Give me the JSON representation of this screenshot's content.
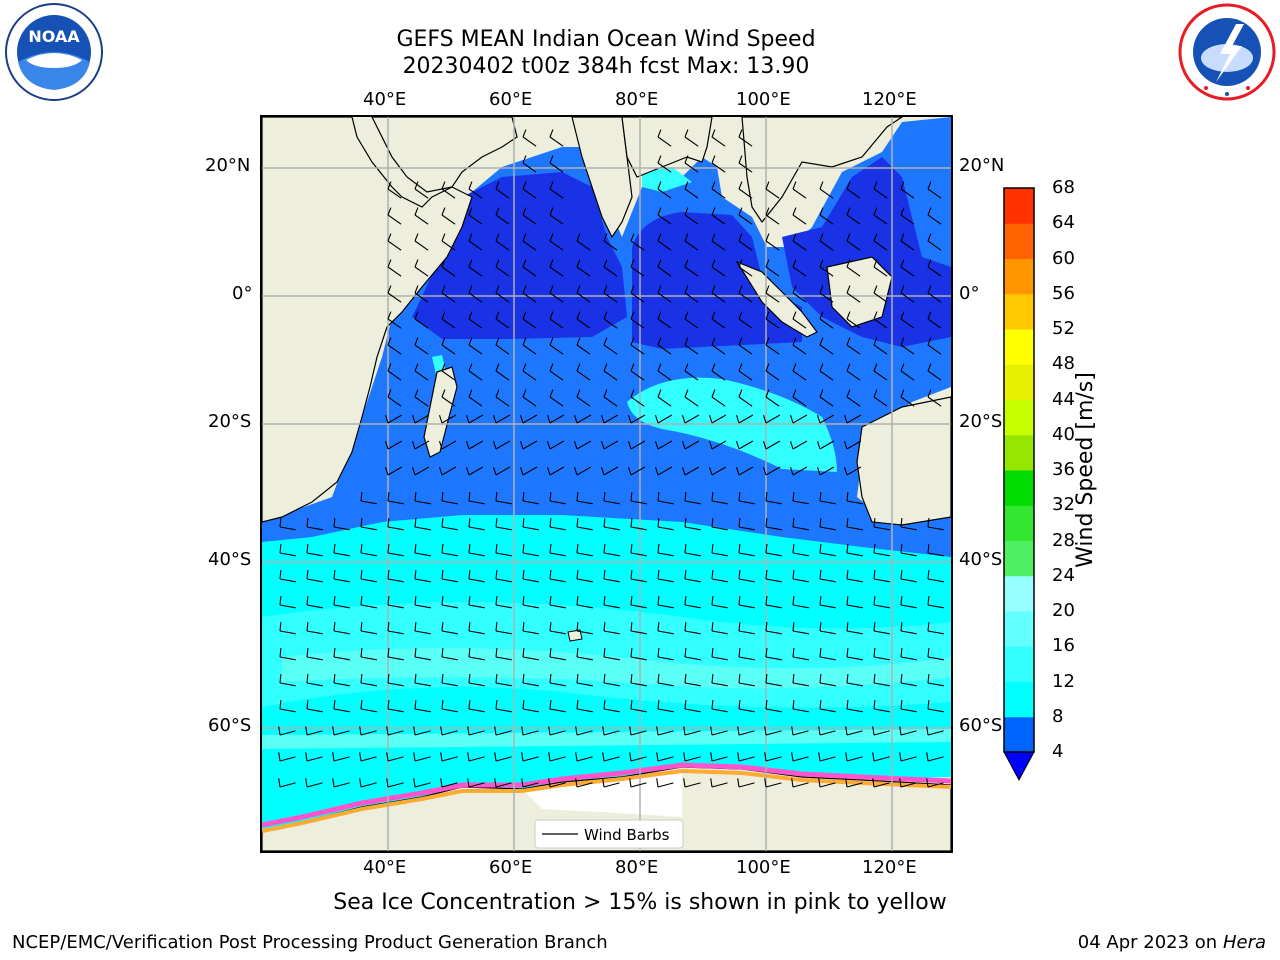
{
  "title": {
    "line1": "GEFS MEAN Indian Ocean Wind Speed",
    "line2": "20230402 t00z 384h fcst   Max: 13.90"
  },
  "logos": {
    "left": {
      "text": "NOAA",
      "ring_text": "NATIONAL OCEANIC AND ATMOSPHERIC ADMINISTRATION · U.S. DEPARTMENT OF COMMERCE"
    },
    "right": {
      "ring_text": "NATIONAL WEATHER SERVICE"
    }
  },
  "map": {
    "lon_ticks": [
      "40°E",
      "60°E",
      "80°E",
      "100°E",
      "120°E"
    ],
    "lat_ticks_left": [
      "20°N",
      "0°",
      "20°S",
      "40°S",
      "60°S"
    ],
    "lat_ticks_right": [
      "20°N",
      "0°",
      "20°S",
      "40°S",
      "60°S"
    ],
    "legend_label": "Wind Barbs",
    "colors": {
      "land": "#eeeedd",
      "ocean_blue": "#0000ff",
      "dark_blue": "#1a32e6",
      "mid_blue": "#1e78ff",
      "cyan_dark": "#00ffff",
      "cyan_light": "#32ffff",
      "cyan_pale": "#5afff5",
      "ice_pink": "#ff55cc",
      "ice_orange": "#ffaa33"
    }
  },
  "colorbar": {
    "label": "Wind Speed [m/s]",
    "ticks": [
      "4",
      "8",
      "12",
      "16",
      "20",
      "24",
      "28",
      "32",
      "36",
      "40",
      "44",
      "48",
      "52",
      "56",
      "60",
      "64",
      "68"
    ],
    "colors": [
      "#0064ff",
      "#00ffff",
      "#32ffff",
      "#64ffff",
      "#96ffff",
      "#50f064",
      "#32e632",
      "#00dc00",
      "#96e600",
      "#c8ff00",
      "#e6f000",
      "#ffff00",
      "#ffc800",
      "#ff9600",
      "#ff6400",
      "#ff3200",
      "#ff0000"
    ],
    "extend_color": "#0000ff"
  },
  "sea_ice_note": "Sea Ice Concentration > 15% is shown in pink to yellow",
  "footer": {
    "left": "NCEP/EMC/Verification Post Processing Product Generation Branch",
    "date": "04 Apr 2023 on ",
    "machine": "Hera"
  }
}
